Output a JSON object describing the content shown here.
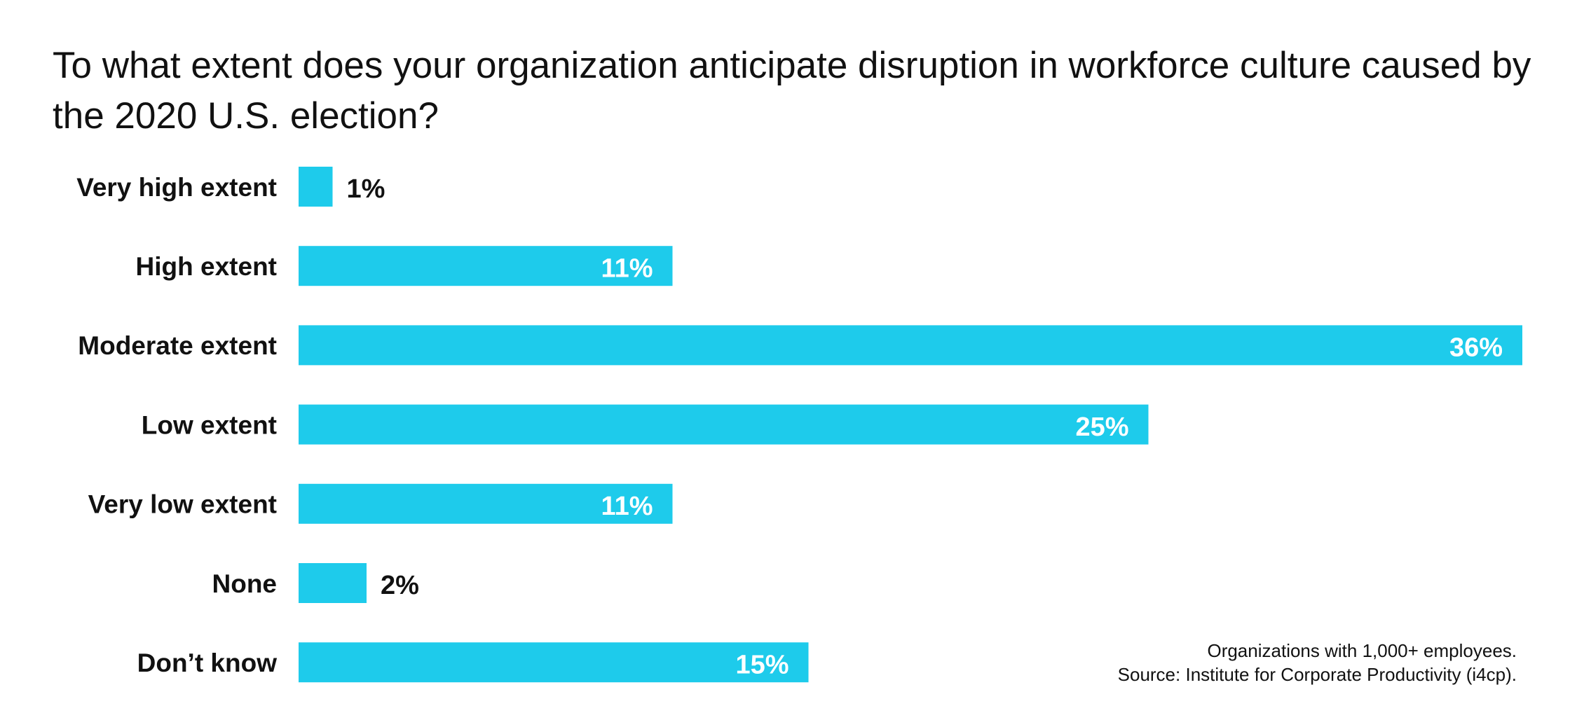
{
  "chart_data": {
    "type": "bar",
    "orientation": "horizontal",
    "title": "To what extent does your organization anticipate disruption in workforce culture caused by the 2020 U.S. election?",
    "categories": [
      "Very high extent",
      "High extent",
      "Moderate extent",
      "Low extent",
      "Very low extent",
      "None",
      "Don’t know"
    ],
    "values": [
      1,
      11,
      36,
      25,
      11,
      2,
      15
    ],
    "value_labels": [
      "1%",
      "11%",
      "36%",
      "25%",
      "11%",
      "2%",
      "15%"
    ],
    "unit": "%",
    "xlim": [
      0,
      36
    ],
    "grid": false,
    "legend": "none",
    "bar_color": "#1ECBEB",
    "label_inside_color": "#FFFFFF",
    "label_outside_color": "#111111"
  },
  "footnote": {
    "note": "Organizations with 1,000+ employees.",
    "source": "Source: Institute for Corporate Productivity (i4cp)."
  }
}
